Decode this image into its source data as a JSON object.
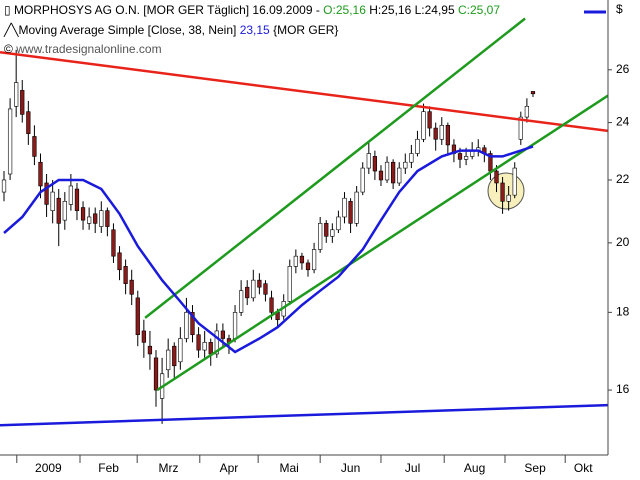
{
  "header": {
    "line1": {
      "name": "MORPHOSYS AG O.N. [MOR GER  Täglich] 16.09.2009 -",
      "open": "O:25,16",
      "hl": "H:25,16 L:24,95",
      "close": "C:25,07"
    },
    "line2": {
      "name": "Moving Average Simple [Close, 38, Nein]",
      "value": "23,15",
      "symbol": "{MOR GER}"
    },
    "site": "www.tradesignalonline.com",
    "currency": "$"
  },
  "chart_data": {
    "type": "candlestick",
    "log_scale": true,
    "ylim": [
      14.5,
      28.9
    ],
    "yticks": [
      16,
      18,
      20,
      22,
      24,
      26
    ],
    "xlim": [
      -0.66,
      99.34
    ],
    "xticks": [
      {
        "value": 2.1,
        "label": "2009"
      },
      {
        "value": 12.5,
        "label": "Feb"
      },
      {
        "value": 21.9,
        "label": "Mrz"
      },
      {
        "value": 32.2,
        "label": "Apr"
      },
      {
        "value": 41.8,
        "label": "Mai"
      },
      {
        "value": 52,
        "label": "Jun"
      },
      {
        "value": 62,
        "label": "Jul"
      },
      {
        "value": 72.4,
        "label": "Aug"
      },
      {
        "value": 82.4,
        "label": "Sep"
      },
      {
        "value": 92.3,
        "label": "Okt"
      }
    ],
    "up_color": "#ffffff",
    "down_color": "#8b1a1a",
    "candles": [
      [
        21.6,
        22.3,
        21.3,
        22.0
      ],
      [
        22.2,
        24.9,
        22.0,
        24.5
      ],
      [
        24.6,
        26.8,
        24.2,
        25.5
      ],
      [
        25.2,
        25.6,
        24.0,
        24.3
      ],
      [
        24.4,
        24.8,
        23.2,
        23.6
      ],
      [
        23.5,
        23.9,
        22.5,
        22.8
      ],
      [
        22.6,
        22.9,
        21.4,
        21.8
      ],
      [
        21.9,
        22.2,
        20.8,
        21.2
      ],
      [
        21.0,
        22.0,
        20.6,
        21.6
      ],
      [
        21.4,
        21.7,
        19.9,
        20.6
      ],
      [
        20.7,
        21.6,
        20.4,
        21.3
      ],
      [
        21.2,
        22.2,
        21.0,
        21.8
      ],
      [
        21.7,
        21.9,
        20.7,
        21.0
      ],
      [
        21.1,
        21.3,
        20.4,
        20.7
      ],
      [
        20.6,
        21.1,
        20.4,
        20.8
      ],
      [
        20.9,
        21.1,
        20.3,
        20.6
      ],
      [
        20.5,
        21.3,
        20.3,
        21.0
      ],
      [
        21.0,
        21.1,
        20.2,
        20.5
      ],
      [
        20.4,
        20.6,
        19.4,
        19.6
      ],
      [
        19.7,
        19.9,
        18.9,
        19.2
      ],
      [
        19.3,
        19.5,
        18.5,
        18.8
      ],
      [
        18.9,
        19.2,
        18.2,
        18.5
      ],
      [
        18.4,
        18.6,
        17.1,
        17.4
      ],
      [
        17.5,
        17.8,
        16.8,
        17.2
      ],
      [
        17.1,
        17.5,
        16.5,
        16.9
      ],
      [
        16.8,
        17.0,
        15.6,
        16.0
      ],
      [
        15.8,
        16.8,
        15.2,
        16.4
      ],
      [
        16.5,
        17.3,
        16.3,
        17.0
      ],
      [
        17.1,
        17.2,
        16.3,
        16.6
      ],
      [
        16.7,
        17.6,
        16.5,
        17.3
      ],
      [
        17.3,
        18.4,
        17.2,
        18.0
      ],
      [
        18.0,
        18.2,
        17.2,
        17.4
      ],
      [
        17.4,
        17.6,
        16.8,
        17.0
      ],
      [
        17.0,
        17.5,
        16.8,
        17.2
      ],
      [
        17.2,
        17.3,
        16.6,
        16.9
      ],
      [
        16.9,
        17.7,
        16.8,
        17.5
      ],
      [
        17.5,
        17.7,
        17.1,
        17.3
      ],
      [
        17.3,
        17.4,
        16.9,
        17.2
      ],
      [
        17.3,
        18.2,
        17.2,
        18.0
      ],
      [
        18.0,
        18.9,
        17.9,
        18.6
      ],
      [
        18.7,
        18.9,
        18.2,
        18.4
      ],
      [
        18.4,
        19.2,
        18.3,
        18.9
      ],
      [
        18.9,
        19.1,
        18.5,
        18.7
      ],
      [
        18.8,
        18.9,
        18.3,
        18.5
      ],
      [
        18.4,
        18.6,
        17.8,
        18.0
      ],
      [
        18.0,
        18.1,
        17.6,
        17.8
      ],
      [
        17.9,
        18.5,
        17.8,
        18.3
      ],
      [
        18.3,
        19.5,
        18.2,
        19.3
      ],
      [
        19.3,
        19.8,
        19.1,
        19.6
      ],
      [
        19.6,
        19.7,
        19.2,
        19.4
      ],
      [
        19.4,
        19.5,
        19.0,
        19.2
      ],
      [
        19.2,
        20.0,
        19.1,
        19.8
      ],
      [
        19.8,
        20.8,
        19.7,
        20.6
      ],
      [
        20.6,
        20.7,
        20.0,
        20.2
      ],
      [
        20.2,
        20.6,
        20.0,
        20.4
      ],
      [
        20.4,
        21.0,
        20.3,
        20.8
      ],
      [
        20.8,
        21.6,
        20.6,
        21.4
      ],
      [
        21.3,
        21.4,
        20.3,
        20.6
      ],
      [
        20.6,
        21.8,
        20.5,
        21.6
      ],
      [
        21.6,
        22.6,
        21.5,
        22.4
      ],
      [
        22.4,
        23.3,
        22.2,
        22.9
      ],
      [
        22.8,
        23.0,
        22.0,
        22.3
      ],
      [
        22.3,
        22.5,
        21.8,
        22.0
      ],
      [
        22.0,
        22.8,
        21.9,
        22.6
      ],
      [
        22.6,
        22.7,
        21.7,
        21.9
      ],
      [
        21.9,
        22.6,
        21.8,
        22.4
      ],
      [
        22.4,
        22.9,
        22.2,
        22.6
      ],
      [
        22.6,
        23.2,
        22.4,
        22.9
      ],
      [
        22.9,
        23.7,
        22.8,
        23.4
      ],
      [
        23.4,
        24.7,
        23.3,
        24.4
      ],
      [
        24.4,
        24.6,
        23.5,
        23.8
      ],
      [
        23.8,
        24.0,
        23.0,
        23.4
      ],
      [
        23.4,
        24.2,
        23.2,
        23.9
      ],
      [
        23.9,
        24.0,
        22.9,
        23.2
      ],
      [
        23.2,
        23.4,
        22.6,
        22.9
      ],
      [
        22.9,
        23.1,
        22.4,
        22.7
      ],
      [
        22.7,
        23.1,
        22.5,
        22.8
      ],
      [
        22.8,
        23.3,
        22.7,
        23.0
      ],
      [
        23.0,
        23.4,
        22.8,
        23.1
      ],
      [
        23.1,
        23.2,
        22.6,
        22.9
      ],
      [
        22.9,
        23.0,
        22.0,
        22.3
      ],
      [
        22.3,
        22.5,
        21.6,
        21.9
      ],
      [
        21.9,
        22.1,
        20.9,
        21.3
      ],
      [
        21.3,
        21.8,
        21.0,
        21.5
      ],
      [
        21.5,
        22.6,
        21.4,
        22.4
      ],
      [
        23.4,
        24.4,
        23.2,
        24.2
      ],
      [
        24.2,
        24.9,
        24.0,
        24.6
      ],
      [
        25.16,
        25.16,
        24.95,
        25.07
      ]
    ],
    "moving_average": {
      "color": "#1a1adc",
      "index": [
        0,
        3,
        6,
        9,
        13,
        16,
        19,
        22,
        26,
        29,
        32,
        36,
        38,
        42,
        45,
        49,
        52,
        55,
        59,
        62,
        65,
        68,
        72,
        75,
        78,
        80,
        82,
        85,
        87
      ],
      "values": [
        20.3,
        20.8,
        21.6,
        22.0,
        22.0,
        21.7,
        20.9,
        19.9,
        18.9,
        18.3,
        17.7,
        17.2,
        16.95,
        17.3,
        17.6,
        18.2,
        18.6,
        19.0,
        19.8,
        20.7,
        21.6,
        22.3,
        22.8,
        23.0,
        23.0,
        22.8,
        22.8,
        23.0,
        23.15
      ]
    },
    "trend_lines": [
      {
        "color": "#e8231a",
        "index": [
          -0.66,
          99.34
        ],
        "values": [
          26.7,
          23.7
        ]
      },
      {
        "color": "#1e9a1e",
        "index": [
          23.2,
          85.7
        ],
        "values": [
          17.85,
          28.1
        ]
      },
      {
        "color": "#1e9a1e",
        "index": [
          25.2,
          99.34
        ],
        "values": [
          16.0,
          25.0
        ]
      },
      {
        "color": "#1a1adc",
        "index": [
          -0.66,
          99.34
        ],
        "values": [
          15.17,
          15.64
        ]
      }
    ]
  }
}
